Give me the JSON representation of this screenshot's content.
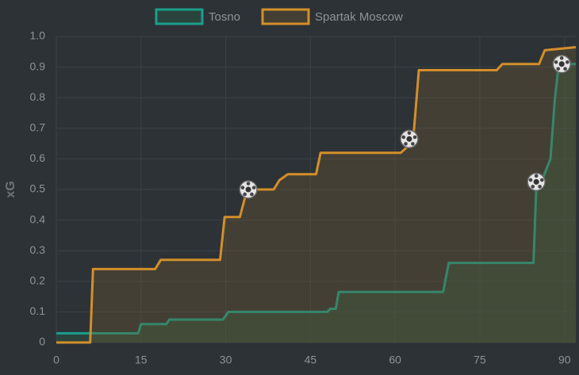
{
  "chart_data": {
    "type": "line",
    "y_label": "xG",
    "xlim": [
      0,
      92
    ],
    "ylim": [
      0,
      1
    ],
    "xticks": [
      0,
      15,
      30,
      45,
      60,
      75,
      90
    ],
    "yticks": [
      0,
      0.1,
      0.2,
      0.3,
      0.4,
      0.5,
      0.6,
      0.7,
      0.8,
      0.9,
      {
        "value": 1,
        "label": "1.0"
      }
    ],
    "grid": true,
    "legend": "top",
    "series": [
      {
        "name": "Tosno",
        "color": "#1a9f8c",
        "fill": "rgba(40,110,80,0.28)",
        "x": [
          0,
          14.5,
          15,
          19.5,
          20,
          29.5,
          30.5,
          48,
          48.5,
          49.5,
          50,
          68.5,
          69.5,
          84.5,
          85,
          86,
          87.5,
          88.3,
          89,
          92
        ],
        "values": [
          0.03,
          0.03,
          0.06,
          0.06,
          0.075,
          0.075,
          0.1,
          0.1,
          0.11,
          0.11,
          0.165,
          0.165,
          0.26,
          0.26,
          0.51,
          0.53,
          0.6,
          0.8,
          0.91,
          0.91
        ],
        "goal_x": [
          85,
          89.5
        ],
        "goal_values": [
          0.525,
          0.91
        ]
      },
      {
        "name": "Spartak Moscow",
        "color": "#d38f2a",
        "fill": "rgba(110,90,50,0.35)",
        "x": [
          0,
          6,
          6.5,
          17.5,
          18.5,
          29,
          29.8,
          32.5,
          33.8,
          38.5,
          39.5,
          41,
          46,
          46.8,
          61,
          62.2,
          63.2,
          64.2,
          78,
          79,
          85.5,
          86.5,
          92
        ],
        "values": [
          0,
          0,
          0.24,
          0.24,
          0.27,
          0.27,
          0.41,
          0.41,
          0.5,
          0.5,
          0.53,
          0.55,
          0.55,
          0.62,
          0.62,
          0.64,
          0.665,
          0.89,
          0.89,
          0.91,
          0.91,
          0.955,
          0.965
        ],
        "goal_x": [
          34,
          62.5
        ],
        "goal_values": [
          0.5,
          0.665
        ]
      }
    ]
  }
}
